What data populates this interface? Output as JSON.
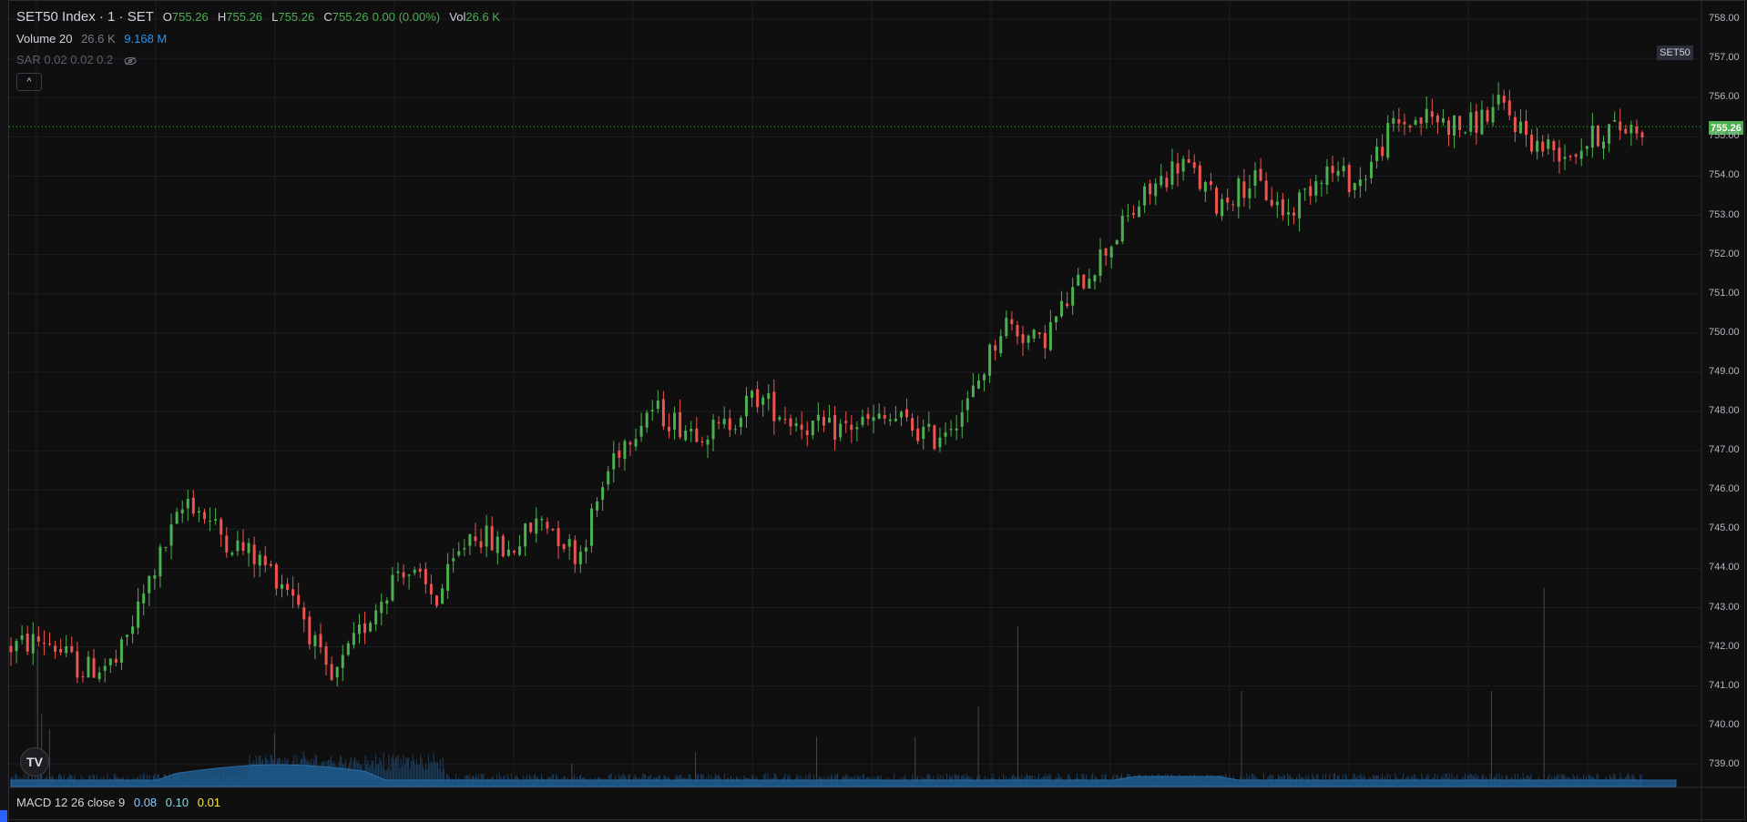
{
  "legend": {
    "symbol": "SET50 Index · 1 · SET",
    "o_label": "O",
    "o": "755.26",
    "h_label": "H",
    "h": "755.26",
    "l_label": "L",
    "l": "755.26",
    "c_label": "C",
    "c": "755.26",
    "change": "0.00 (0.00%)",
    "vol_label": "Vol",
    "vol": "26.6 K"
  },
  "volume_legend": {
    "name": "Volume 20",
    "value1": "26.6 K",
    "value2": "9.168 M"
  },
  "sar_legend": {
    "text": "SAR 0.02 0.02 0.2"
  },
  "macd_legend": {
    "name": "MACD 12 26 close 9",
    "v1": "0.08",
    "v2": "0.10",
    "v3": "0.01"
  },
  "symbol_tag": "SET50",
  "last_price_tag": "755.26",
  "collapse_button": "^",
  "logo_text": "TV",
  "colors": {
    "up": "#4caf50",
    "down": "#ef5350",
    "volume": "#1e5b8c",
    "background": "#0f0f10",
    "grid": "#1c1e24"
  },
  "chart_data": {
    "type": "candlestick",
    "ylim": [
      738.5,
      758.5
    ],
    "y_ticks": [
      "758.00",
      "757.00",
      "756.00",
      "755.00",
      "754.00",
      "753.00",
      "752.00",
      "751.00",
      "750.00",
      "749.00",
      "748.00",
      "747.00",
      "746.00",
      "745.00",
      "744.00",
      "743.00",
      "742.00",
      "741.00",
      "740.00",
      "739.00"
    ],
    "last_price": 755.26,
    "path_closes": [
      742.0,
      742.2,
      741.4,
      741.6,
      743.9,
      745.8,
      744.8,
      744.2,
      743.4,
      741.0,
      742.6,
      744.1,
      743.2,
      745.0,
      744.4,
      745.3,
      744.3,
      746.9,
      748.1,
      747.6,
      747.5,
      748.4,
      747.8,
      747.5,
      747.7,
      747.8,
      747.3,
      748.2,
      750.3,
      749.7,
      751.1,
      752.3,
      753.5,
      754.4,
      753.3,
      753.9,
      753.0,
      754.2,
      753.8,
      755.3,
      755.5,
      755.2,
      755.8,
      754.8,
      754.6,
      755.2,
      755.26
    ],
    "volume_spikes": [
      {
        "index": 20,
        "value": 3.6
      },
      {
        "index": 23,
        "value": 1.9
      },
      {
        "index": 29,
        "value": 1.5
      },
      {
        "index": 200,
        "value": 1.4
      },
      {
        "index": 426,
        "value": 0.6
      },
      {
        "index": 520,
        "value": 0.9
      },
      {
        "index": 612,
        "value": 1.3
      },
      {
        "index": 687,
        "value": 1.3
      },
      {
        "index": 735,
        "value": 2.1
      },
      {
        "index": 765,
        "value": 4.2
      },
      {
        "index": 935,
        "value": 2.5
      },
      {
        "index": 1125,
        "value": 2.5
      },
      {
        "index": 1165,
        "value": 5.2
      }
    ]
  }
}
